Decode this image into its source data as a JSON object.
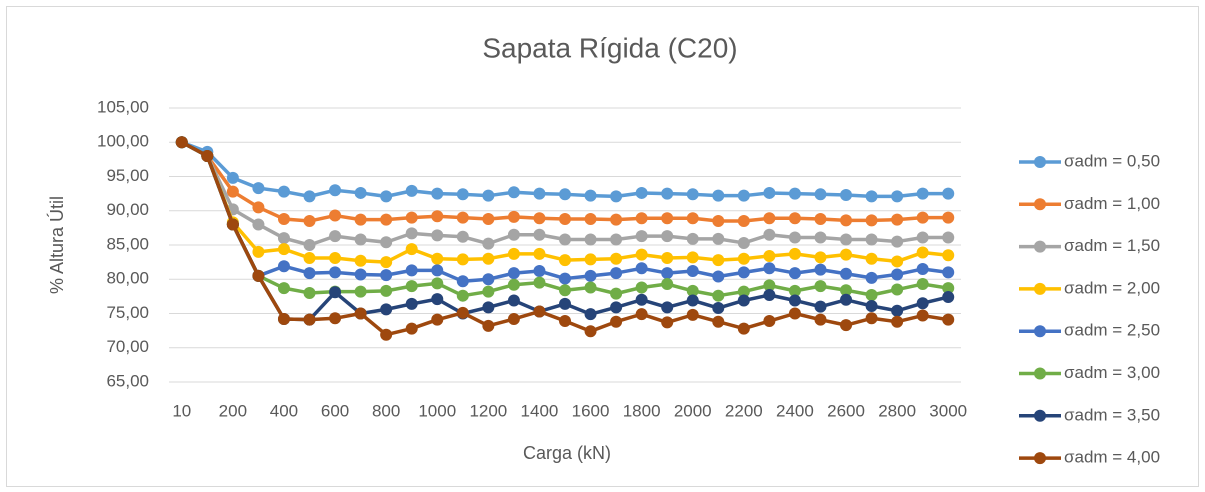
{
  "chart_data": {
    "type": "line",
    "title": "Sapata Rígida (C20)",
    "x_label": "Carga (kN)",
    "y_label": "% Altura Útil",
    "categories": [
      10,
      null,
      200,
      null,
      400,
      null,
      600,
      null,
      800,
      null,
      1000,
      null,
      1200,
      null,
      1400,
      null,
      1600,
      null,
      1800,
      null,
      2000,
      null,
      2200,
      null,
      2400,
      null,
      2600,
      null,
      2800,
      null,
      3000
    ],
    "ylim": [
      65,
      105
    ],
    "yticks": [
      {
        "value": 65,
        "label": "65,00"
      },
      {
        "value": 70,
        "label": "70,00"
      },
      {
        "value": 75,
        "label": "75,00"
      },
      {
        "value": 80,
        "label": "80,00"
      },
      {
        "value": 85,
        "label": "85,00"
      },
      {
        "value": 90,
        "label": "90,00"
      },
      {
        "value": 95,
        "label": "95,00"
      },
      {
        "value": 100,
        "label": "100,00"
      },
      {
        "value": 105,
        "label": "105,00"
      }
    ],
    "grid": true,
    "legend": "right",
    "series": [
      {
        "name": "σadm = 0,50",
        "color": "#5B9BD5",
        "values": [
          100,
          98.6,
          94.8,
          93.3,
          92.8,
          92.1,
          93.0,
          92.6,
          92.1,
          92.9,
          92.5,
          92.4,
          92.2,
          92.7,
          92.5,
          92.4,
          92.2,
          92.1,
          92.6,
          92.5,
          92.4,
          92.2,
          92.2,
          92.6,
          92.5,
          92.4,
          92.3,
          92.1,
          92.1,
          92.5,
          92.5
        ]
      },
      {
        "name": "σadm = 1,00",
        "color": "#ED7D31",
        "values": [
          100,
          98,
          92.8,
          90.5,
          88.8,
          88.5,
          89.3,
          88.7,
          88.7,
          89.0,
          89.2,
          89.0,
          88.8,
          89.1,
          88.9,
          88.8,
          88.8,
          88.7,
          88.9,
          88.9,
          88.9,
          88.5,
          88.5,
          88.9,
          88.9,
          88.8,
          88.6,
          88.6,
          88.7,
          89.0,
          89.0
        ]
      },
      {
        "name": "σadm = 1,50",
        "color": "#A5A5A5",
        "values": [
          100,
          98,
          90.2,
          88.0,
          86.0,
          85.0,
          86.3,
          85.8,
          85.4,
          86.7,
          86.4,
          86.2,
          85.2,
          86.5,
          86.5,
          85.8,
          85.8,
          85.8,
          86.3,
          86.3,
          85.9,
          85.9,
          85.3,
          86.5,
          86.1,
          86.1,
          85.8,
          85.8,
          85.5,
          86.1,
          86.1
        ]
      },
      {
        "name": "σadm = 2,00",
        "color": "#FFC000",
        "values": [
          100,
          98,
          88.3,
          84.0,
          84.4,
          83.1,
          83.1,
          82.7,
          82.5,
          84.4,
          83.0,
          82.9,
          83.0,
          83.7,
          83.7,
          82.8,
          82.9,
          83.0,
          83.6,
          83.1,
          83.2,
          82.8,
          83.0,
          83.4,
          83.7,
          83.2,
          83.6,
          83.0,
          82.6,
          83.9,
          83.5
        ]
      },
      {
        "name": "σadm = 2,50",
        "color": "#4472C4",
        "values": [
          100,
          98,
          88,
          80.5,
          81.9,
          80.9,
          81.0,
          80.7,
          80.6,
          81.3,
          81.3,
          79.7,
          80.0,
          80.9,
          81.2,
          80.1,
          80.5,
          80.9,
          81.6,
          80.9,
          81.2,
          80.4,
          81.0,
          81.6,
          80.9,
          81.4,
          80.8,
          80.2,
          80.7,
          81.5,
          81.0
        ]
      },
      {
        "name": "σadm = 3,00",
        "color": "#70AD47",
        "values": [
          100,
          98,
          88,
          80.5,
          78.7,
          78.0,
          78.2,
          78.2,
          78.3,
          79.0,
          79.4,
          77.6,
          78.2,
          79.2,
          79.5,
          78.4,
          78.8,
          77.9,
          78.8,
          79.3,
          78.3,
          77.6,
          78.2,
          79.1,
          78.3,
          79.0,
          78.4,
          77.7,
          78.5,
          79.3,
          78.7
        ]
      },
      {
        "name": "σadm = 3,50",
        "color": "#264478",
        "values": [
          100,
          98,
          88,
          80.5,
          74.2,
          74.1,
          78.1,
          75.0,
          75.6,
          76.4,
          77.1,
          75.0,
          75.9,
          76.9,
          75.3,
          76.4,
          74.9,
          75.9,
          77.0,
          75.9,
          76.9,
          75.8,
          76.9,
          77.7,
          76.9,
          76.0,
          77.0,
          76.1,
          75.4,
          76.5,
          77.4
        ]
      },
      {
        "name": "σadm = 4,00",
        "color": "#9E480E",
        "values": [
          100,
          98,
          88,
          80.5,
          74.2,
          74.1,
          74.3,
          75.0,
          71.9,
          72.8,
          74.1,
          75.1,
          73.2,
          74.2,
          75.3,
          73.9,
          72.4,
          73.8,
          74.9,
          73.7,
          74.8,
          73.8,
          72.8,
          73.9,
          75.0,
          74.1,
          73.3,
          74.3,
          73.8,
          74.7,
          74.1
        ]
      }
    ]
  }
}
